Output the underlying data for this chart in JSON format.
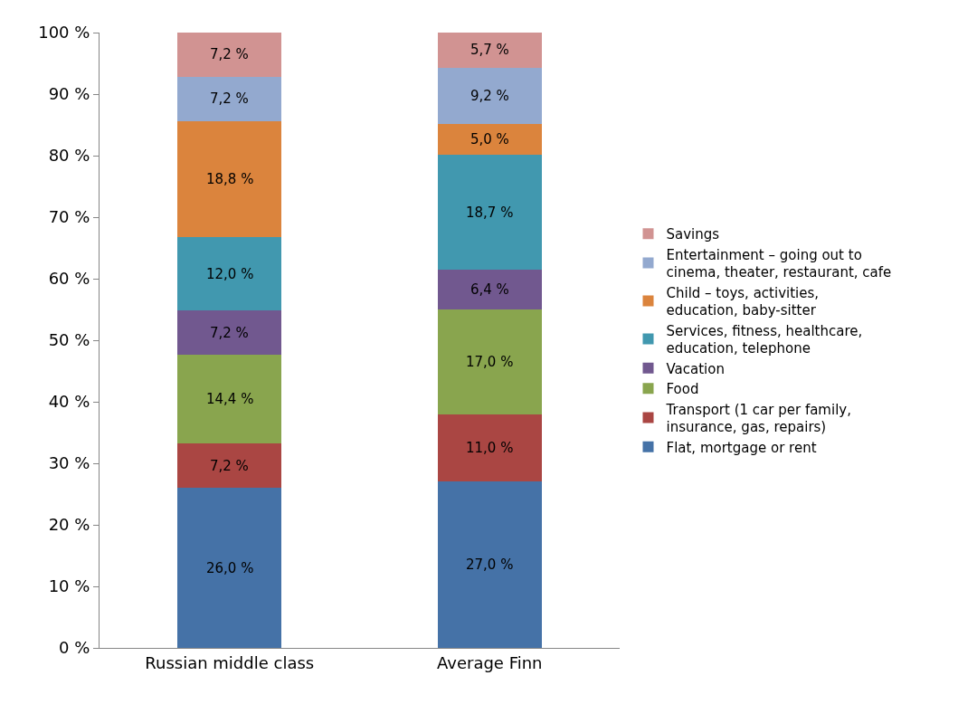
{
  "chart_data": {
    "type": "bar",
    "stacked": true,
    "categories": [
      "Russian middle class",
      "Average Finn"
    ],
    "series": [
      {
        "name": "Flat, mortgage or rent",
        "color": "#4572a7",
        "values": [
          26.0,
          27.0
        ],
        "value_labels": [
          "26,0 %",
          "27,0 %"
        ]
      },
      {
        "name": "Transport (1 car per family, insurance, gas, repairs)",
        "color": "#aa4643",
        "values": [
          7.2,
          11.0
        ],
        "value_labels": [
          "7,2 %",
          "11,0 %"
        ]
      },
      {
        "name": "Food",
        "color": "#89a54e",
        "values": [
          14.4,
          17.0
        ],
        "value_labels": [
          "14,4 %",
          "17,0 %"
        ]
      },
      {
        "name": "Vacation",
        "color": "#71588f",
        "values": [
          7.2,
          6.4
        ],
        "value_labels": [
          "7,2 %",
          "6,4 %"
        ]
      },
      {
        "name": "Services, fitness, healthcare, education, telephone",
        "color": "#4198af",
        "values": [
          12.0,
          18.7
        ],
        "value_labels": [
          "12,0 %",
          "18,7 %"
        ]
      },
      {
        "name": "Child – toys, activities, education, baby-sitter",
        "color": "#db843d",
        "values": [
          18.8,
          5.0
        ],
        "value_labels": [
          "18,8 %",
          "5,0 %"
        ]
      },
      {
        "name": "Entertainment – going out to cinema, theater, restaurant, cafe",
        "color": "#93a9cf",
        "values": [
          7.2,
          9.2
        ],
        "value_labels": [
          "7,2 %",
          "9,2 %"
        ]
      },
      {
        "name": "Savings",
        "color": "#d19392",
        "values": [
          7.2,
          5.7
        ],
        "value_labels": [
          "7,2 %",
          "5,7 %"
        ]
      }
    ],
    "ylim": [
      0,
      100
    ],
    "yticks": [
      {
        "value": 0,
        "label": "0 %"
      },
      {
        "value": 10,
        "label": "10 %"
      },
      {
        "value": 20,
        "label": "20 %"
      },
      {
        "value": 30,
        "label": "30 %"
      },
      {
        "value": 40,
        "label": "40 %"
      },
      {
        "value": 50,
        "label": "50 %"
      },
      {
        "value": 60,
        "label": "60 %"
      },
      {
        "value": 70,
        "label": "70 %"
      },
      {
        "value": 80,
        "label": "80 %"
      },
      {
        "value": 90,
        "label": "90 %"
      },
      {
        "value": 100,
        "label": "100 %"
      }
    ],
    "grid": false,
    "legend": "right"
  }
}
